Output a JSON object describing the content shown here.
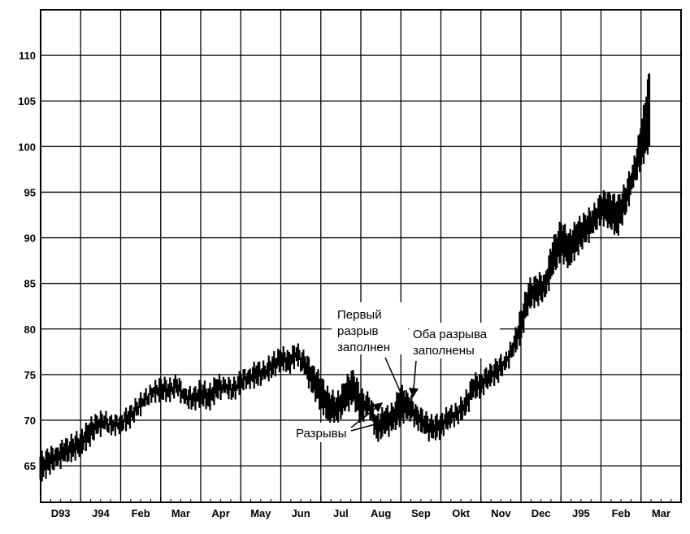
{
  "chart_data": {
    "type": "bar",
    "style": "price-bars",
    "grid": true,
    "ylim": [
      61,
      115
    ],
    "yticks": [
      65,
      70,
      75,
      80,
      85,
      90,
      95,
      100,
      105,
      110
    ],
    "ytick_labels": [
      "65",
      "70",
      "75",
      "80",
      "85",
      "90",
      "95",
      "100",
      "105",
      "110"
    ],
    "xticks": [
      "D93",
      "J94",
      "Feb",
      "Mar",
      "Apr",
      "May",
      "Jun",
      "Jul",
      "Aug",
      "Sep",
      "Okt",
      "Nov",
      "Dec",
      "J95",
      "Feb",
      "Mar"
    ],
    "bar_color": "#000000",
    "series": [
      {
        "points": [
          [
            0.0,
            66.0,
            63.5
          ],
          [
            0.2,
            66.5,
            64.5
          ],
          [
            0.4,
            67.0,
            65.0
          ],
          [
            0.6,
            67.5,
            65.5
          ],
          [
            0.8,
            68.0,
            66.0
          ],
          [
            1.0,
            68.5,
            66.5
          ],
          [
            1.2,
            69.5,
            67.5
          ],
          [
            1.4,
            70.5,
            68.5
          ],
          [
            1.6,
            70.5,
            69.0
          ],
          [
            1.8,
            70.0,
            68.8
          ],
          [
            2.0,
            70.5,
            69.0
          ],
          [
            2.2,
            71.0,
            69.5
          ],
          [
            2.4,
            72.0,
            70.5
          ],
          [
            2.6,
            73.0,
            71.5
          ],
          [
            2.8,
            73.5,
            72.5
          ],
          [
            3.0,
            74.5,
            72.5
          ],
          [
            3.2,
            74.0,
            72.5
          ],
          [
            3.4,
            74.5,
            73.0
          ],
          [
            3.6,
            73.5,
            71.8
          ],
          [
            3.8,
            73.0,
            71.5
          ],
          [
            4.0,
            74.0,
            72.0
          ],
          [
            4.2,
            73.5,
            71.5
          ],
          [
            4.4,
            74.5,
            72.5
          ],
          [
            4.6,
            74.5,
            73.0
          ],
          [
            4.8,
            74.0,
            72.5
          ],
          [
            5.0,
            75.0,
            73.5
          ],
          [
            5.2,
            75.5,
            74.0
          ],
          [
            5.4,
            76.0,
            74.0
          ],
          [
            5.6,
            76.0,
            74.5
          ],
          [
            5.8,
            77.0,
            75.0
          ],
          [
            6.0,
            77.5,
            76.0
          ],
          [
            6.2,
            77.5,
            75.5
          ],
          [
            6.4,
            78.0,
            76.5
          ],
          [
            6.6,
            77.0,
            75.0
          ],
          [
            6.8,
            76.0,
            73.0
          ],
          [
            7.0,
            74.5,
            71.5
          ],
          [
            7.2,
            73.0,
            70.0
          ],
          [
            7.4,
            72.5,
            70.0
          ],
          [
            7.6,
            74.0,
            71.0
          ],
          [
            7.8,
            75.5,
            72.0
          ],
          [
            8.0,
            73.0,
            70.0
          ],
          [
            8.2,
            72.5,
            71.0
          ],
          [
            8.4,
            70.5,
            68.0
          ],
          [
            8.6,
            71.0,
            68.5
          ],
          [
            8.8,
            71.5,
            69.0
          ],
          [
            9.0,
            73.5,
            70.0
          ],
          [
            9.2,
            72.5,
            70.5
          ],
          [
            9.4,
            71.5,
            69.5
          ],
          [
            9.6,
            70.5,
            68.5
          ],
          [
            9.8,
            70.0,
            68.0
          ],
          [
            10.0,
            70.5,
            68.5
          ],
          [
            10.2,
            71.0,
            69.5
          ],
          [
            10.4,
            71.5,
            70.0
          ],
          [
            10.6,
            72.5,
            70.5
          ],
          [
            10.8,
            74.5,
            72.5
          ],
          [
            11.0,
            75.0,
            73.0
          ],
          [
            11.2,
            75.5,
            74.0
          ],
          [
            11.4,
            76.5,
            74.5
          ],
          [
            11.6,
            77.0,
            75.5
          ],
          [
            11.8,
            78.5,
            77.0
          ],
          [
            12.0,
            82.0,
            79.0
          ],
          [
            12.2,
            85.0,
            82.5
          ],
          [
            12.4,
            85.5,
            83.0
          ],
          [
            12.6,
            86.0,
            83.5
          ],
          [
            12.8,
            89.5,
            86.0
          ],
          [
            13.0,
            91.5,
            88.0
          ],
          [
            13.2,
            90.5,
            87.0
          ],
          [
            13.4,
            91.5,
            88.5
          ],
          [
            13.6,
            92.5,
            89.5
          ],
          [
            13.8,
            93.0,
            90.5
          ],
          [
            14.0,
            94.5,
            92.0
          ],
          [
            14.2,
            95.0,
            91.5
          ],
          [
            14.4,
            94.0,
            90.5
          ],
          [
            14.6,
            95.5,
            92.5
          ],
          [
            14.8,
            98.0,
            95.5
          ],
          [
            15.0,
            102.0,
            98.0
          ],
          [
            15.2,
            108.0,
            100.0
          ]
        ]
      }
    ],
    "annotations": [
      {
        "lines": [
          "Первый",
          "разрыв",
          "заполнен"
        ]
      },
      {
        "lines": [
          "Оба разрыва",
          "заполнены"
        ]
      },
      {
        "lines": [
          "Разрывы"
        ]
      }
    ]
  }
}
